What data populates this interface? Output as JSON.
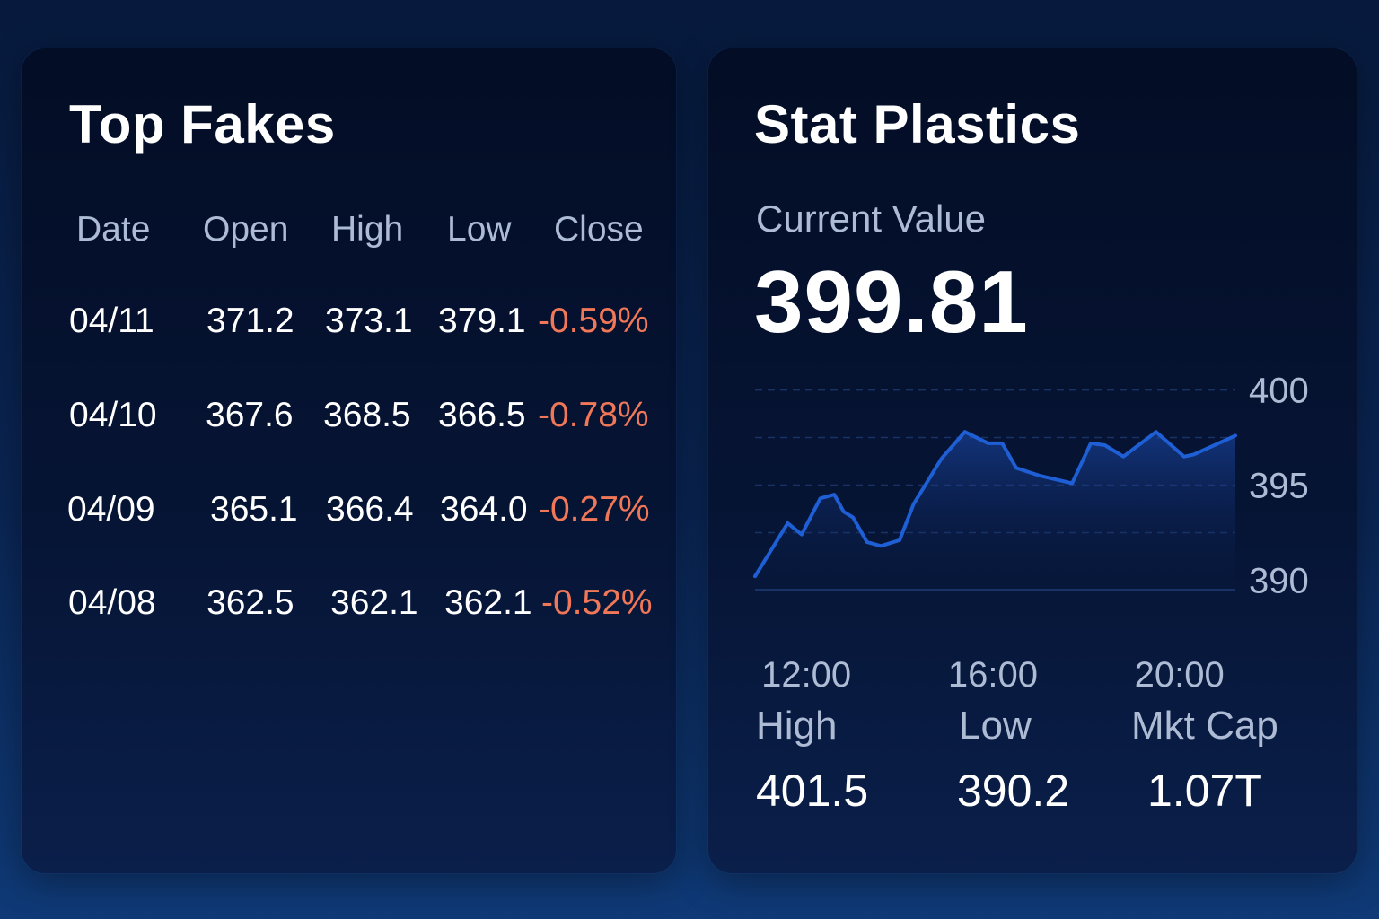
{
  "left_panel": {
    "title": "Top Fakes",
    "columns": [
      "Date",
      "Open",
      "High",
      "Low",
      "Close"
    ],
    "rows": [
      {
        "date": "04/11",
        "open": "371.2",
        "high": "373.1",
        "low": "379.1",
        "close": "-0.59%"
      },
      {
        "date": "04/10",
        "open": "367.6",
        "high": "368.5",
        "low": "366.5",
        "close": "-0.78%"
      },
      {
        "date": "04/09",
        "open": "365.1",
        "high": "366.4",
        "low": "364.0",
        "close": "-0.27%"
      },
      {
        "date": "04/08",
        "open": "362.5",
        "high": "362.1",
        "low": "362.1",
        "close": "-0.52%"
      }
    ]
  },
  "right_panel": {
    "title": "Stat Plastics",
    "current_label": "Current Value",
    "current_value": "399.81",
    "stats": {
      "high_label": "High",
      "high_value": "401.5",
      "low_label": "Low",
      "low_value": "390.2",
      "mktcap_label": "Mkt Cap",
      "mktcap_value": "1.07T"
    }
  },
  "colors": {
    "line": "#1f5fd6",
    "negative": "#f07758",
    "muted_text": "#aebbd4"
  },
  "chart_data": {
    "type": "area",
    "x_tick_labels": [
      "12:00",
      "16:00",
      "20:00"
    ],
    "y_tick_labels": [
      "400",
      "395",
      "390"
    ],
    "ylim": [
      389.5,
      400.5
    ],
    "xlim": [
      10.9,
      21.2
    ],
    "grid": "horizontal-dashed",
    "series": [
      {
        "x": [
          10.9,
          11.6,
          11.9,
          12.3,
          12.6,
          12.8,
          13.0,
          13.3,
          13.6,
          14.0,
          14.3,
          14.9,
          15.4,
          15.9,
          16.2,
          16.5,
          17.0,
          17.7,
          18.1,
          18.4,
          18.8,
          19.5,
          20.1,
          20.3,
          21.2
        ],
        "y": [
          390.2,
          393.0,
          392.4,
          394.3,
          394.5,
          393.6,
          393.3,
          392.0,
          391.8,
          392.1,
          394.0,
          396.4,
          397.8,
          397.2,
          397.2,
          395.9,
          395.5,
          395.1,
          397.2,
          397.1,
          396.5,
          397.8,
          396.5,
          396.6,
          397.6
        ]
      }
    ]
  }
}
